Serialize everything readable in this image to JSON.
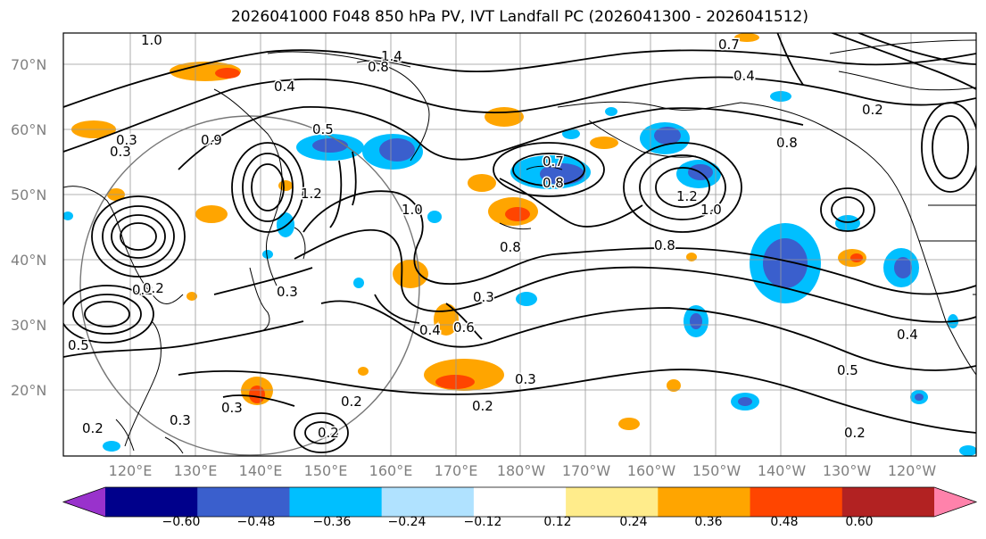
{
  "title": "2026041000 F048 850 hPa PV, IVT Landfall PC (2026041300 - 2026041512)",
  "lat_labels": [
    "70°N",
    "60°N",
    "50°N",
    "40°N",
    "30°N",
    "20°N"
  ],
  "lon_labels": [
    "120°E",
    "130°E",
    "140°E",
    "150°E",
    "160°E",
    "170°E",
    "180°W",
    "170°W",
    "160°W",
    "150°W",
    "140°W",
    "130°W",
    "120°W"
  ],
  "contour_labels": [
    "1.0",
    "1.4",
    "0.4",
    "0.8",
    "0.7",
    "0.4",
    "0.2",
    "0.3",
    "0.9",
    "0.5",
    "0.7",
    "0.8",
    "1.0",
    "1.2",
    "0.8",
    "0.8",
    "0.3",
    "0.2",
    "0.3",
    "0.4",
    "0.6",
    "0.3",
    "0.2",
    "0.3",
    "0.2",
    "0.3",
    "0.2",
    "0.2",
    "0.5",
    "0.4",
    "0.2",
    "0.8",
    "1.2",
    "1.0",
    "0.3",
    "0.2",
    "0.5"
  ],
  "colorbar": {
    "colors": [
      "#9932cc",
      "#00008b",
      "#3a5fcd",
      "#00bfff",
      "#b0e2ff",
      "#ffffff",
      "#ffec8b",
      "#ffa500",
      "#ff4500",
      "#b22222",
      "#ff82ab"
    ],
    "tick_labels": [
      "−0.60",
      "−0.48",
      "−0.36",
      "−0.24",
      "−0.12",
      "0.12",
      "0.24",
      "0.36",
      "0.48",
      "0.60"
    ]
  },
  "legend_colors": {
    "neg_strong": "#3a5fcd",
    "neg": "#00bfff",
    "pos": "#ffa500",
    "pos_strong": "#ff4500"
  }
}
